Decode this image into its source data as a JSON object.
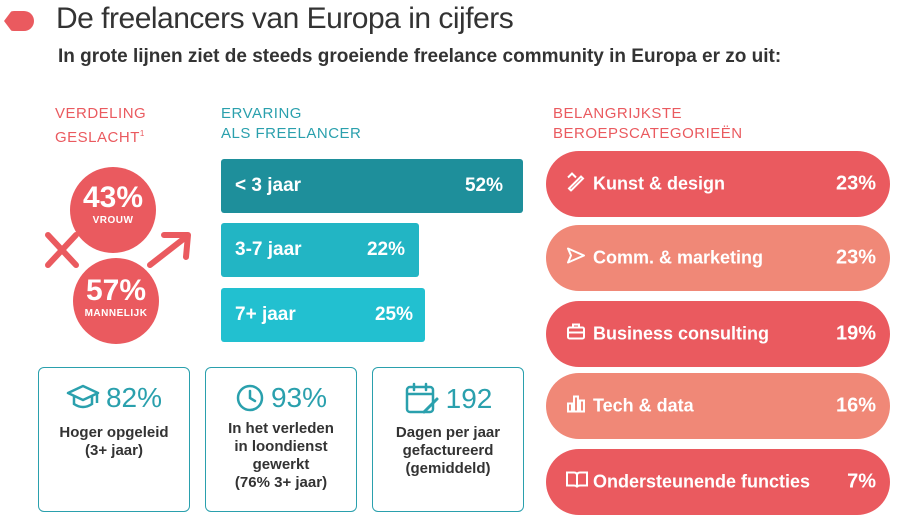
{
  "header": {
    "title": "De freelancers van Europa in cijfers",
    "subtitle": "In grote lijnen ziet de steeds groeiende freelance community in Europa er zo uit:"
  },
  "gender": {
    "label_line1": "VERDELING",
    "label_line2": "GESLACHT",
    "footnote": "1",
    "female_pct": "43%",
    "female_label": "VROUW",
    "male_pct": "57%",
    "male_label": "MANNELIJK"
  },
  "experience": {
    "label_line1": "ERVARING",
    "label_line2": "ALS FREELANCER",
    "bars": [
      {
        "label": "< 3 jaar",
        "value": "52%",
        "color": "#1e8f9b"
      },
      {
        "label": "3-7 jaar",
        "value": "22%",
        "color": "#22b5c4"
      },
      {
        "label": "7+ jaar",
        "value": "25%",
        "color": "#22c0d0"
      }
    ]
  },
  "cards": [
    {
      "icon": "graduation-cap-icon",
      "stat": "82%",
      "desc": [
        "Hoger opgeleid",
        "(3+ jaar)"
      ]
    },
    {
      "icon": "clock-icon",
      "stat": "93%",
      "desc": [
        "In het verleden",
        "in loondienst",
        "gewerkt",
        "(76% 3+ jaar)"
      ]
    },
    {
      "icon": "calendar-edit-icon",
      "stat": "192",
      "desc": [
        "Dagen per jaar",
        "gefactureerd",
        "(gemiddeld)"
      ]
    }
  ],
  "categories": {
    "label_line1": "BELANGRIJKSTE",
    "label_line2": "BEROEPSCATEGORIEËN",
    "items": [
      {
        "icon": "pencil-ruler-icon",
        "name": "Kunst & design",
        "value": "23%",
        "color": "#ea5a5f"
      },
      {
        "icon": "send-icon",
        "name": "Comm. & marketing",
        "value": "23%",
        "color": "#f08877"
      },
      {
        "icon": "briefcase-icon",
        "name": "Business consulting",
        "value": "19%",
        "color": "#ea5a5f"
      },
      {
        "icon": "bar-chart-icon",
        "name": "Tech & data",
        "value": "16%",
        "color": "#f08877"
      },
      {
        "icon": "book-icon",
        "name": "Ondersteunende functies",
        "value": "7%",
        "color": "#ea5a5f"
      }
    ]
  }
}
